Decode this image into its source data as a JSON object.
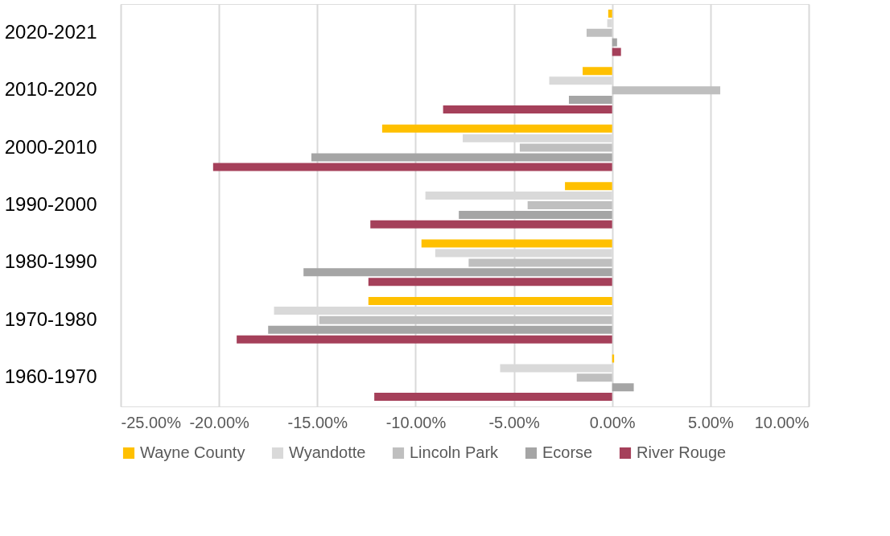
{
  "chart_data": {
    "type": "bar",
    "orientation": "horizontal",
    "categories": [
      "2020-2021",
      "2010-2020",
      "2000-2010",
      "1990-2000",
      "1980-1990",
      "1970-1980",
      "1960-1970"
    ],
    "series": [
      {
        "name": "Wayne County",
        "color": "#ffc000",
        "values": [
          -0.2,
          -1.5,
          -11.7,
          -2.4,
          -9.7,
          -12.4,
          0.1
        ]
      },
      {
        "name": "Wyandotte",
        "color": "#d9d9d9",
        "values": [
          -0.25,
          -3.2,
          -7.6,
          -9.5,
          -9.0,
          -17.2,
          -5.7
        ]
      },
      {
        "name": "Lincoln Park",
        "color": "#bfbfbf",
        "values": [
          -1.3,
          5.5,
          -4.7,
          -4.3,
          -7.3,
          -14.9,
          -1.8
        ]
      },
      {
        "name": "Ecorse",
        "color": "#a5a5a5",
        "values": [
          0.25,
          -2.2,
          -15.3,
          -7.8,
          -15.7,
          -17.5,
          1.1
        ]
      },
      {
        "name": "River Rouge",
        "color": "#a5405a",
        "values": [
          0.45,
          -8.6,
          -20.3,
          -12.3,
          -12.4,
          -19.1,
          -12.1
        ]
      }
    ],
    "xlim": [
      -25,
      10
    ],
    "xticks": [
      {
        "value": -25,
        "label": "-25.00%"
      },
      {
        "value": -20,
        "label": "-20.00%"
      },
      {
        "value": -15,
        "label": "-15.00%"
      },
      {
        "value": -10,
        "label": "-10.00%"
      },
      {
        "value": -5,
        "label": "-5.00%"
      },
      {
        "value": 0,
        "label": "0.00%"
      },
      {
        "value": 5,
        "label": "5.00%"
      },
      {
        "value": 10,
        "label": "10.00%"
      }
    ],
    "grid": "x",
    "legend": "bottom"
  }
}
